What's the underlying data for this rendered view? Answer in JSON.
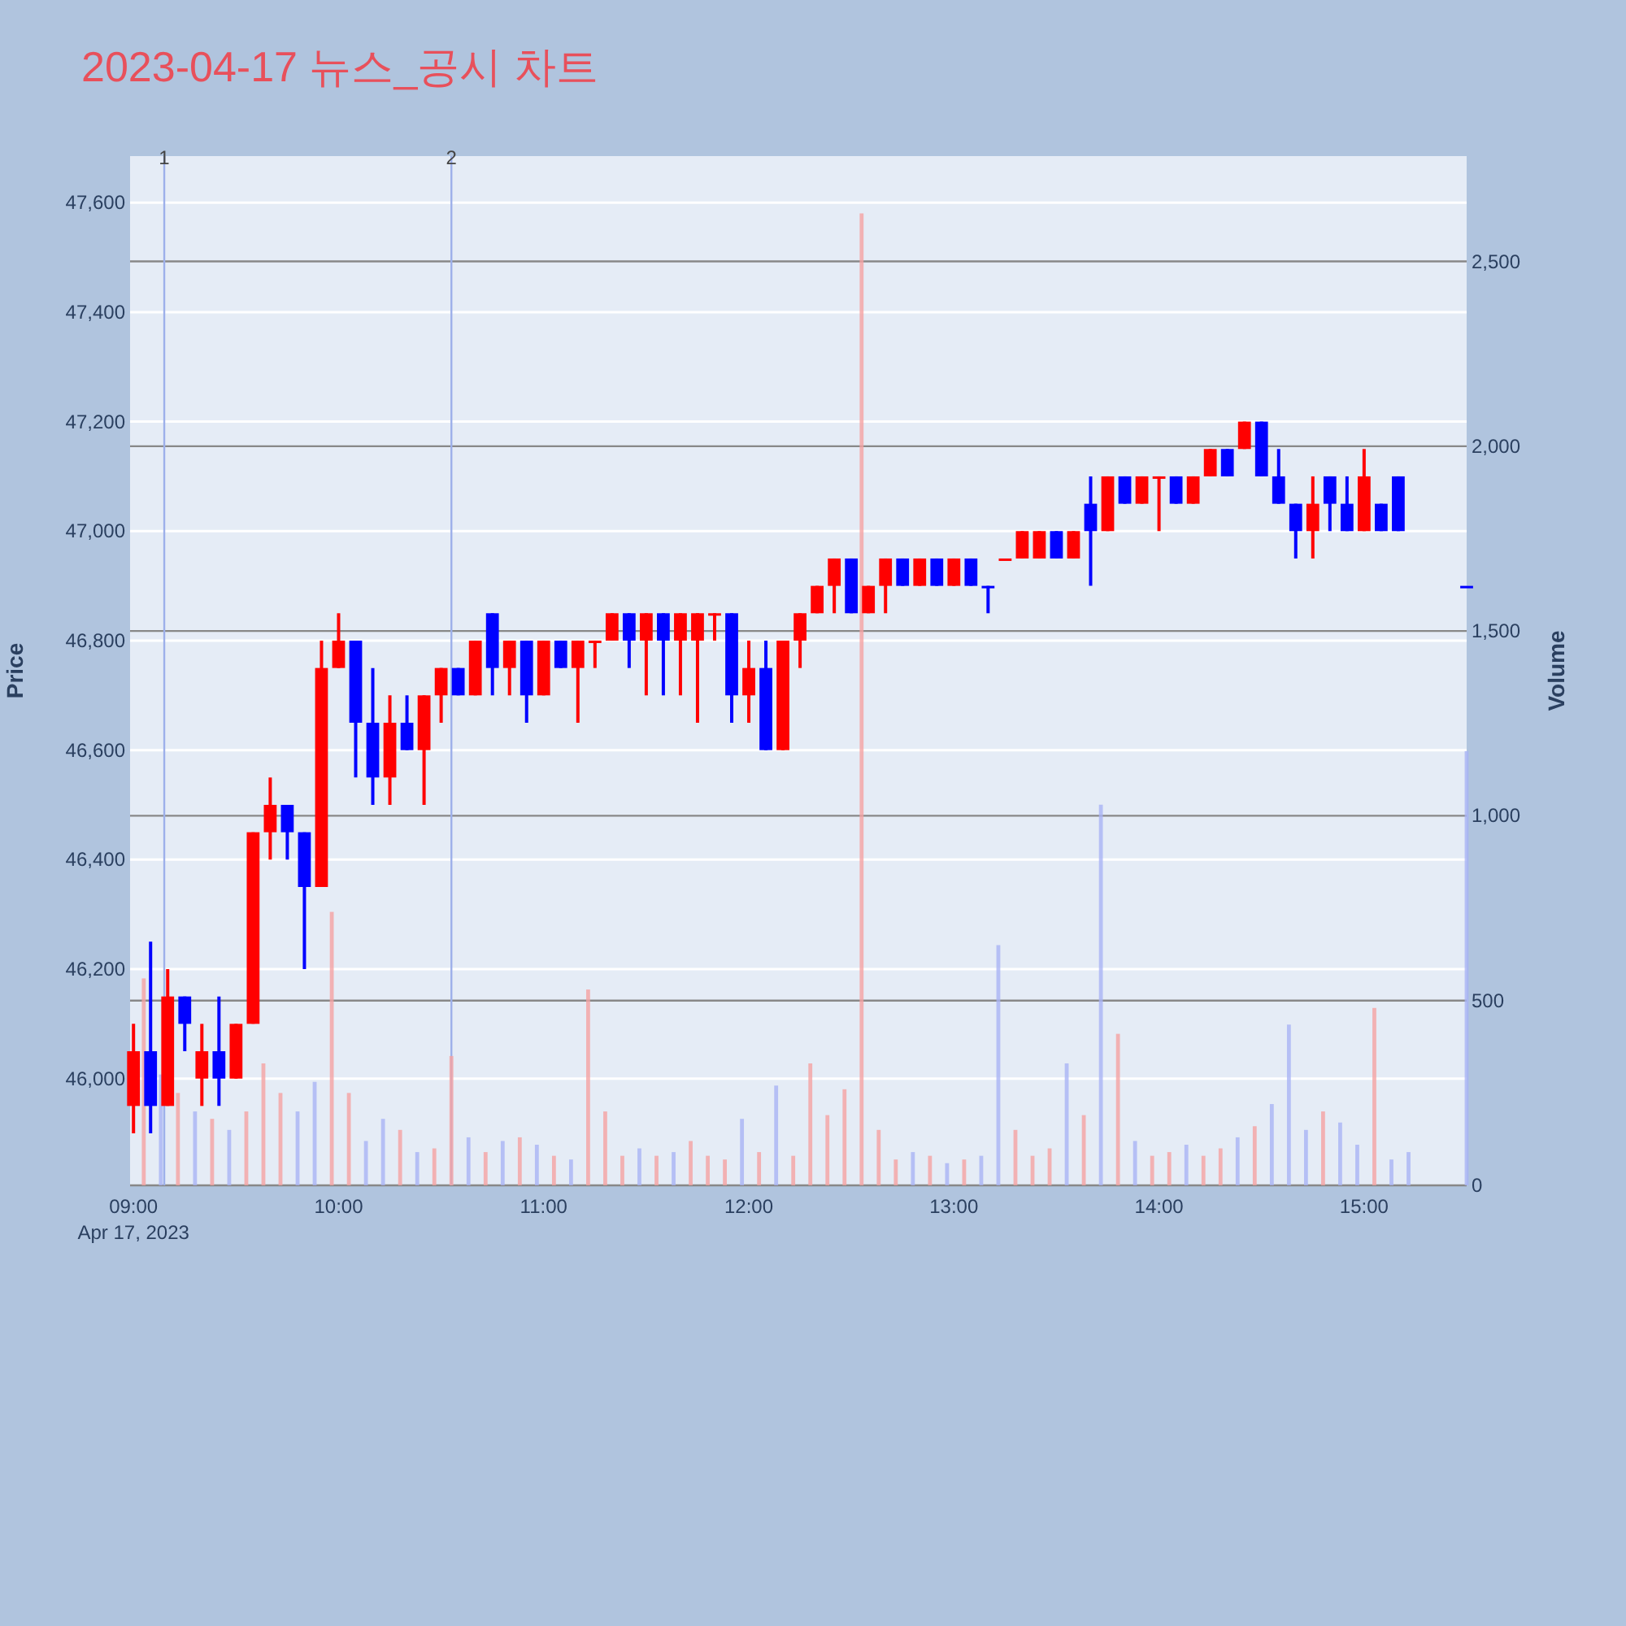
{
  "chart_data": {
    "type": "candlestick",
    "title": "2023-04-17 뉴스_공시 차트",
    "ylabel": "Price",
    "y2label": "Volume",
    "x": [
      "2023-04-17T09:00",
      "2023-04-17T09:05",
      "2023-04-17T09:10",
      "2023-04-17T09:15",
      "2023-04-17T09:20",
      "2023-04-17T09:25",
      "2023-04-17T09:30",
      "2023-04-17T09:35",
      "2023-04-17T09:40",
      "2023-04-17T09:45",
      "2023-04-17T09:50",
      "2023-04-17T09:55",
      "2023-04-17T10:00",
      "2023-04-17T10:05",
      "2023-04-17T10:10",
      "2023-04-17T10:15",
      "2023-04-17T10:20",
      "2023-04-17T10:25",
      "2023-04-17T10:30",
      "2023-04-17T10:35",
      "2023-04-17T10:40",
      "2023-04-17T10:45",
      "2023-04-17T10:50",
      "2023-04-17T10:55",
      "2023-04-17T11:00",
      "2023-04-17T11:05",
      "2023-04-17T11:10",
      "2023-04-17T11:15",
      "2023-04-17T11:20",
      "2023-04-17T11:25",
      "2023-04-17T11:30",
      "2023-04-17T11:35",
      "2023-04-17T11:40",
      "2023-04-17T11:45",
      "2023-04-17T11:50",
      "2023-04-17T11:55",
      "2023-04-17T12:00",
      "2023-04-17T12:05",
      "2023-04-17T12:10",
      "2023-04-17T12:15",
      "2023-04-17T12:20",
      "2023-04-17T12:25",
      "2023-04-17T12:30",
      "2023-04-17T12:35",
      "2023-04-17T12:40",
      "2023-04-17T12:45",
      "2023-04-17T12:50",
      "2023-04-17T12:55",
      "2023-04-17T13:00",
      "2023-04-17T13:05",
      "2023-04-17T13:10",
      "2023-04-17T13:15",
      "2023-04-17T13:20",
      "2023-04-17T13:25",
      "2023-04-17T13:30",
      "2023-04-17T13:35",
      "2023-04-17T13:40",
      "2023-04-17T13:45",
      "2023-04-17T13:50",
      "2023-04-17T13:55",
      "2023-04-17T14:00",
      "2023-04-17T14:05",
      "2023-04-17T14:10",
      "2023-04-17T14:15",
      "2023-04-17T14:20",
      "2023-04-17T14:25",
      "2023-04-17T14:30",
      "2023-04-17T14:35",
      "2023-04-17T14:40",
      "2023-04-17T14:45",
      "2023-04-17T14:50",
      "2023-04-17T14:55",
      "2023-04-17T15:00",
      "2023-04-17T15:05",
      "2023-04-17T15:10",
      "2023-04-17T15:30"
    ],
    "ohlc": [
      [
        45950,
        46100,
        45900,
        46050
      ],
      [
        46050,
        46250,
        45900,
        45950
      ],
      [
        45950,
        46200,
        45950,
        46150
      ],
      [
        46150,
        46150,
        46050,
        46100
      ],
      [
        46000,
        46100,
        45950,
        46050
      ],
      [
        46050,
        46150,
        45950,
        46000
      ],
      [
        46000,
        46100,
        46000,
        46100
      ],
      [
        46100,
        46450,
        46100,
        46450
      ],
      [
        46450,
        46550,
        46400,
        46500
      ],
      [
        46500,
        46500,
        46400,
        46450
      ],
      [
        46450,
        46450,
        46200,
        46350
      ],
      [
        46350,
        46800,
        46350,
        46750
      ],
      [
        46750,
        46850,
        46750,
        46800
      ],
      [
        46800,
        46800,
        46550,
        46650
      ],
      [
        46650,
        46750,
        46500,
        46550
      ],
      [
        46550,
        46700,
        46500,
        46650
      ],
      [
        46650,
        46700,
        46600,
        46600
      ],
      [
        46600,
        46700,
        46500,
        46700
      ],
      [
        46700,
        46750,
        46650,
        46750
      ],
      [
        46750,
        46750,
        46700,
        46700
      ],
      [
        46700,
        46800,
        46700,
        46800
      ],
      [
        46850,
        46850,
        46700,
        46750
      ],
      [
        46750,
        46800,
        46700,
        46800
      ],
      [
        46800,
        46800,
        46650,
        46700
      ],
      [
        46700,
        46800,
        46700,
        46800
      ],
      [
        46800,
        46800,
        46750,
        46750
      ],
      [
        46750,
        46800,
        46650,
        46800
      ],
      [
        46800,
        46800,
        46750,
        46800
      ],
      [
        46800,
        46850,
        46800,
        46850
      ],
      [
        46850,
        46850,
        46750,
        46800
      ],
      [
        46800,
        46850,
        46700,
        46850
      ],
      [
        46850,
        46850,
        46700,
        46800
      ],
      [
        46800,
        46850,
        46700,
        46850
      ],
      [
        46800,
        46850,
        46650,
        46850
      ],
      [
        46850,
        46850,
        46800,
        46850
      ],
      [
        46850,
        46850,
        46650,
        46700
      ],
      [
        46700,
        46800,
        46650,
        46750
      ],
      [
        46750,
        46800,
        46600,
        46600
      ],
      [
        46600,
        46800,
        46600,
        46800
      ],
      [
        46800,
        46850,
        46750,
        46850
      ],
      [
        46850,
        46900,
        46850,
        46900
      ],
      [
        46900,
        46950,
        46850,
        46950
      ],
      [
        46950,
        46950,
        46850,
        46850
      ],
      [
        46850,
        46900,
        46850,
        46900
      ],
      [
        46900,
        46950,
        46850,
        46950
      ],
      [
        46950,
        46950,
        46900,
        46900
      ],
      [
        46900,
        46950,
        46900,
        46950
      ],
      [
        46950,
        46950,
        46900,
        46900
      ],
      [
        46900,
        46950,
        46900,
        46950
      ],
      [
        46950,
        46950,
        46900,
        46900
      ],
      [
        46900,
        46900,
        46850,
        46900
      ],
      [
        46950,
        46950,
        46950,
        46950
      ],
      [
        46950,
        47000,
        46950,
        47000
      ],
      [
        46950,
        47000,
        46950,
        47000
      ],
      [
        47000,
        47000,
        46950,
        46950
      ],
      [
        46950,
        47000,
        46950,
        47000
      ],
      [
        47050,
        47100,
        46900,
        47000
      ],
      [
        47000,
        47100,
        47000,
        47100
      ],
      [
        47100,
        47100,
        47050,
        47050
      ],
      [
        47050,
        47100,
        47050,
        47100
      ],
      [
        47100,
        47100,
        47000,
        47100
      ],
      [
        47100,
        47100,
        47050,
        47050
      ],
      [
        47050,
        47100,
        47050,
        47100
      ],
      [
        47100,
        47150,
        47100,
        47150
      ],
      [
        47150,
        47150,
        47100,
        47100
      ],
      [
        47150,
        47200,
        47150,
        47200
      ],
      [
        47200,
        47200,
        47100,
        47100
      ],
      [
        47100,
        47150,
        47050,
        47050
      ],
      [
        47050,
        47050,
        46950,
        47000
      ],
      [
        47000,
        47100,
        46950,
        47050
      ],
      [
        47100,
        47100,
        47000,
        47050
      ],
      [
        47050,
        47100,
        47000,
        47000
      ],
      [
        47000,
        47150,
        47000,
        47100
      ],
      [
        47050,
        47050,
        47000,
        47000
      ],
      [
        47100,
        47100,
        47000,
        47000
      ],
      [
        46900,
        46900,
        46900,
        46900
      ]
    ],
    "colors": [
      "#ff0000",
      "#0000ff",
      "#ff0000",
      "#0000ff",
      "#ff0000",
      "#0000ff",
      "#ff0000",
      "#ff0000",
      "#ff0000",
      "#0000ff",
      "#0000ff",
      "#ff0000",
      "#ff0000",
      "#0000ff",
      "#0000ff",
      "#ff0000",
      "#0000ff",
      "#ff0000",
      "#ff0000",
      "#0000ff",
      "#ff0000",
      "#0000ff",
      "#ff0000",
      "#0000ff",
      "#ff0000",
      "#0000ff",
      "#ff0000",
      "#ff0000",
      "#ff0000",
      "#0000ff",
      "#ff0000",
      "#0000ff",
      "#ff0000",
      "#ff0000",
      "#ff0000",
      "#0000ff",
      "#ff0000",
      "#0000ff",
      "#ff0000",
      "#ff0000",
      "#ff0000",
      "#ff0000",
      "#0000ff",
      "#ff0000",
      "#ff0000",
      "#0000ff",
      "#ff0000",
      "#0000ff",
      "#ff0000",
      "#0000ff",
      "#0000ff",
      "#ff0000",
      "#ff0000",
      "#ff0000",
      "#0000ff",
      "#ff0000",
      "#0000ff",
      "#ff0000",
      "#0000ff",
      "#ff0000",
      "#ff0000",
      "#0000ff",
      "#ff0000",
      "#ff0000",
      "#0000ff",
      "#ff0000",
      "#0000ff",
      "#0000ff",
      "#0000ff",
      "#ff0000",
      "#0000ff",
      "#0000ff",
      "#ff0000",
      "#0000ff",
      "#0000ff",
      "#0000ff"
    ],
    "series": [
      {
        "type": "bar",
        "axis": "y2",
        "x": [
          "2023-04-17T09:03",
          "2023-04-17T09:08",
          "2023-04-17T09:13",
          "2023-04-17T09:18",
          "2023-04-17T09:23",
          "2023-04-17T09:28",
          "2023-04-17T09:33",
          "2023-04-17T09:38",
          "2023-04-17T09:43",
          "2023-04-17T09:48",
          "2023-04-17T09:53",
          "2023-04-17T09:58",
          "2023-04-17T10:03",
          "2023-04-17T10:08",
          "2023-04-17T10:13",
          "2023-04-17T10:18",
          "2023-04-17T10:23",
          "2023-04-17T10:28",
          "2023-04-17T10:33",
          "2023-04-17T10:38",
          "2023-04-17T10:43",
          "2023-04-17T10:48",
          "2023-04-17T10:53",
          "2023-04-17T10:58",
          "2023-04-17T11:03",
          "2023-04-17T11:08",
          "2023-04-17T11:13",
          "2023-04-17T11:18",
          "2023-04-17T11:23",
          "2023-04-17T11:28",
          "2023-04-17T11:33",
          "2023-04-17T11:38",
          "2023-04-17T11:43",
          "2023-04-17T11:48",
          "2023-04-17T11:53",
          "2023-04-17T11:58",
          "2023-04-17T12:03",
          "2023-04-17T12:08",
          "2023-04-17T12:13",
          "2023-04-17T12:18",
          "2023-04-17T12:23",
          "2023-04-17T12:28",
          "2023-04-17T12:33",
          "2023-04-17T12:38",
          "2023-04-17T12:43",
          "2023-04-17T12:48",
          "2023-04-17T12:53",
          "2023-04-17T12:58",
          "2023-04-17T13:03",
          "2023-04-17T13:08",
          "2023-04-17T13:13",
          "2023-04-17T13:18",
          "2023-04-17T13:23",
          "2023-04-17T13:28",
          "2023-04-17T13:33",
          "2023-04-17T13:38",
          "2023-04-17T13:43",
          "2023-04-17T13:48",
          "2023-04-17T13:53",
          "2023-04-17T13:58",
          "2023-04-17T14:03",
          "2023-04-17T14:08",
          "2023-04-17T14:13",
          "2023-04-17T14:18",
          "2023-04-17T14:23",
          "2023-04-17T14:28",
          "2023-04-17T14:33",
          "2023-04-17T14:38",
          "2023-04-17T14:43",
          "2023-04-17T14:48",
          "2023-04-17T14:53",
          "2023-04-17T14:58",
          "2023-04-17T15:03",
          "2023-04-17T15:08",
          "2023-04-17T15:13",
          "2023-04-17T15:30"
        ],
        "values": [
          560,
          300,
          250,
          200,
          180,
          150,
          200,
          330,
          250,
          200,
          280,
          740,
          250,
          120,
          180,
          150,
          90,
          100,
          350,
          130,
          90,
          120,
          130,
          110,
          80,
          70,
          530,
          200,
          80,
          100,
          80,
          90,
          120,
          80,
          70,
          180,
          90,
          270,
          80,
          330,
          190,
          260,
          2630,
          150,
          70,
          90,
          80,
          60,
          70,
          80,
          650,
          150,
          80,
          100,
          330,
          190,
          1030,
          410,
          120,
          80,
          90,
          110,
          80,
          100,
          130,
          160,
          220,
          435,
          150,
          200,
          170,
          110,
          480,
          70,
          90,
          1175
        ],
        "colors": [
          "#f5a3a3",
          "#a9b4f5",
          "#f5a3a3",
          "#a9b4f5",
          "#f5a3a3",
          "#a9b4f5",
          "#f5a3a3",
          "#f5a3a3",
          "#f5a3a3",
          "#a9b4f5",
          "#a9b4f5",
          "#f5a3a3",
          "#f5a3a3",
          "#a9b4f5",
          "#a9b4f5",
          "#f5a3a3",
          "#a9b4f5",
          "#f5a3a3",
          "#f5a3a3",
          "#a9b4f5",
          "#f5a3a3",
          "#a9b4f5",
          "#f5a3a3",
          "#a9b4f5",
          "#f5a3a3",
          "#a9b4f5",
          "#f5a3a3",
          "#f5a3a3",
          "#f5a3a3",
          "#a9b4f5",
          "#f5a3a3",
          "#a9b4f5",
          "#f5a3a3",
          "#f5a3a3",
          "#f5a3a3",
          "#a9b4f5",
          "#f5a3a3",
          "#a9b4f5",
          "#f5a3a3",
          "#f5a3a3",
          "#f5a3a3",
          "#f5a3a3",
          "#f5a3a3",
          "#f5a3a3",
          "#f5a3a3",
          "#a9b4f5",
          "#f5a3a3",
          "#a9b4f5",
          "#f5a3a3",
          "#a9b4f5",
          "#a9b4f5",
          "#f5a3a3",
          "#f5a3a3",
          "#f5a3a3",
          "#a9b4f5",
          "#f5a3a3",
          "#a9b4f5",
          "#f5a3a3",
          "#a9b4f5",
          "#f5a3a3",
          "#f5a3a3",
          "#a9b4f5",
          "#f5a3a3",
          "#f5a3a3",
          "#a9b4f5",
          "#f5a3a3",
          "#a9b4f5",
          "#a9b4f5",
          "#a9b4f5",
          "#f5a3a3",
          "#a9b4f5",
          "#a9b4f5",
          "#f5a3a3",
          "#a9b4f5",
          "#a9b4f5",
          "#a9b4f5"
        ]
      }
    ],
    "xlim": [
      "2023-04-17T08:59",
      "2023-04-17T15:30"
    ],
    "xticks": [
      {
        "value": "2023-04-17T09:00",
        "label": "09:00\nApr 17, 2023"
      },
      {
        "value": "2023-04-17T10:00",
        "label": "10:00"
      },
      {
        "value": "2023-04-17T11:00",
        "label": "11:00"
      },
      {
        "value": "2023-04-17T12:00",
        "label": "12:00"
      },
      {
        "value": "2023-04-17T13:00",
        "label": "13:00"
      },
      {
        "value": "2023-04-17T14:00",
        "label": "14:00"
      },
      {
        "value": "2023-04-17T15:00",
        "label": "15:00"
      }
    ],
    "ylim": [
      45805,
      47685
    ],
    "yticks": [
      {
        "value": 46000,
        "label": "46,000"
      },
      {
        "value": 46200,
        "label": "46,200"
      },
      {
        "value": 46400,
        "label": "46,400"
      },
      {
        "value": 46600,
        "label": "46,600"
      },
      {
        "value": 46800,
        "label": "46,800"
      },
      {
        "value": 47000,
        "label": "47,000"
      },
      {
        "value": 47200,
        "label": "47,200"
      },
      {
        "value": 47400,
        "label": "47,400"
      },
      {
        "value": 47600,
        "label": "47,600"
      }
    ],
    "y2lim": [
      0,
      2785
    ],
    "y2ticks": [
      0,
      500,
      {
        "value": 1000,
        "label": "1,000"
      },
      {
        "value": 1500,
        "label": "1,500"
      },
      {
        "value": 2000,
        "label": "2,000"
      },
      {
        "value": 2500,
        "label": "2,500"
      }
    ],
    "ref_lines": [
      {
        "axis": "x",
        "value": "2023-04-17T09:09",
        "label": "1",
        "color": "#9db0ea"
      },
      {
        "axis": "x",
        "value": "2023-04-17T10:33",
        "label": "2",
        "color": "#9db0ea"
      }
    ],
    "grid": "y"
  }
}
